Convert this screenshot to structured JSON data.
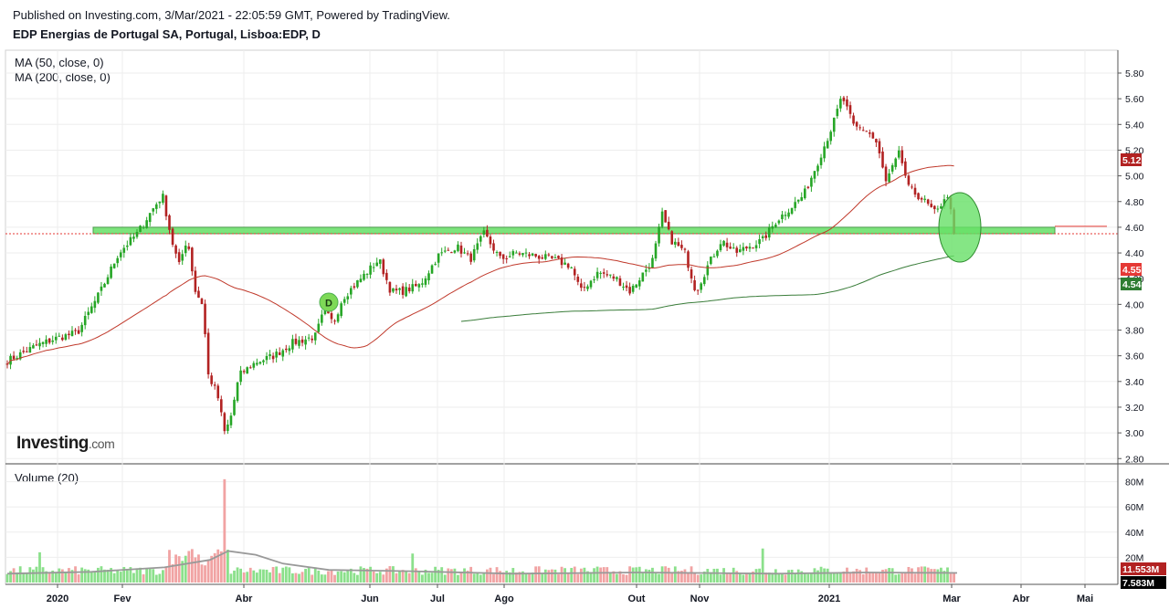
{
  "header": {
    "published": "Published on Investing.com, 3/Mar/2021 - 22:05:59 GMT, Powered by TradingView.",
    "title": "EDP Energias de Portugal SA, Portugal, Lisboa:EDP, D"
  },
  "indicators": {
    "ma50": "MA (50, close, 0)",
    "ma200": "MA (200, close, 0)",
    "volume": "Volume (20)"
  },
  "logo": {
    "main": "Investing",
    "suffix": ".com"
  },
  "annotation": {
    "dividend_marker": "D"
  },
  "chart_data": {
    "type": "candlestick",
    "price_axis": {
      "ticks": [
        "5.80",
        "5.60",
        "5.40",
        "5.20",
        "5.00",
        "4.80",
        "4.60",
        "4.40",
        "4.20",
        "4.00",
        "3.80",
        "3.60",
        "3.40",
        "3.20",
        "3.00",
        "2.80"
      ],
      "range": [
        2.8,
        5.8
      ]
    },
    "volume_axis": {
      "ticks": [
        "80M",
        "60M",
        "40M",
        "20M"
      ],
      "range": [
        0,
        80
      ]
    },
    "x_axis": {
      "labels": [
        "2020",
        "Fev",
        "Abr",
        "Jun",
        "Jul",
        "Ago",
        "Out",
        "Nov",
        "2021",
        "Mar",
        "Abr",
        "Mai"
      ]
    },
    "price_labels": [
      {
        "value": "5.12",
        "color": "#b22222"
      },
      {
        "value": "4.55",
        "color": "#e53935"
      },
      {
        "value": "4.54",
        "color": "#2e7d32"
      }
    ],
    "volume_labels": [
      {
        "value": "11.553M",
        "color": "#b22222"
      },
      {
        "value": "7.583M",
        "color": "#000000"
      }
    ],
    "support_zone": {
      "low": 4.55,
      "high": 4.6,
      "color": "#66e066"
    },
    "last_close": 4.55,
    "colors": {
      "up": "#26a626",
      "down": "#b22222",
      "ma50": "#c0392b",
      "ma200": "#3a7d3a",
      "vol_up": "#8be08b",
      "vol_down": "#f1a3a3",
      "vol_ma": "#999999"
    }
  }
}
